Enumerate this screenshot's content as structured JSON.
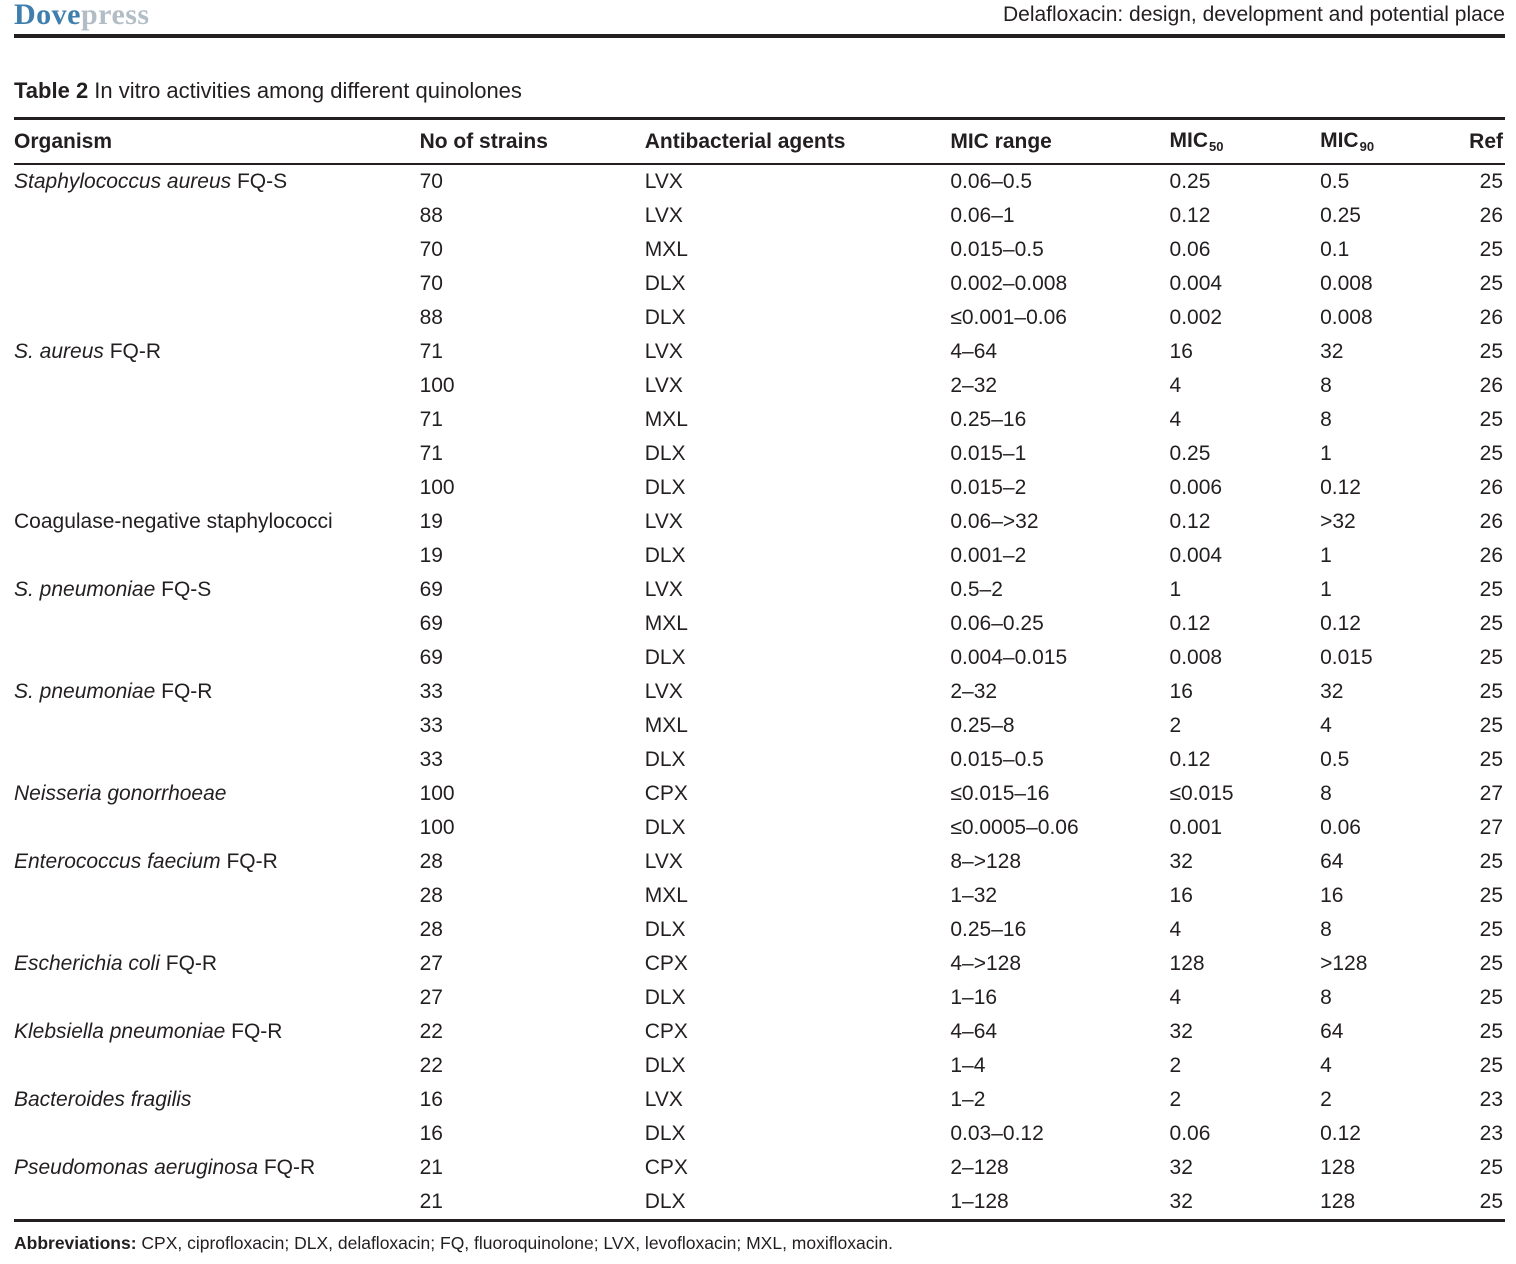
{
  "header": {
    "logo_bold": "Dove",
    "logo_light": "press",
    "running_title": "Delafloxacin: design, development and potential place"
  },
  "table": {
    "caption_label": "Table 2",
    "caption_text": "In vitro activities among different quinolones",
    "columns": [
      {
        "key": "organism",
        "label": "Organism"
      },
      {
        "key": "strains",
        "label": "No of strains"
      },
      {
        "key": "agents",
        "label": "Antibacterial agents"
      },
      {
        "key": "mic-range",
        "label": "MIC range"
      },
      {
        "key": "mic50",
        "label": "MIC",
        "sub": "50"
      },
      {
        "key": "mic90",
        "label": "MIC",
        "sub": "90"
      },
      {
        "key": "ref",
        "label": "Ref"
      }
    ],
    "rows": [
      {
        "organism": "Staphylococcus aureus",
        "suffix": "FQ-S",
        "italic": true,
        "strains": "70",
        "agent": "LVX",
        "mic_range": "0.06–0.5",
        "mic50": "0.25",
        "mic90": "0.5",
        "ref": "25"
      },
      {
        "organism": "",
        "suffix": "",
        "italic": false,
        "strains": "88",
        "agent": "LVX",
        "mic_range": "0.06–1",
        "mic50": "0.12",
        "mic90": "0.25",
        "ref": "26"
      },
      {
        "organism": "",
        "suffix": "",
        "italic": false,
        "strains": "70",
        "agent": "MXL",
        "mic_range": "0.015–0.5",
        "mic50": "0.06",
        "mic90": "0.1",
        "ref": "25"
      },
      {
        "organism": "",
        "suffix": "",
        "italic": false,
        "strains": "70",
        "agent": "DLX",
        "mic_range": "0.002–0.008",
        "mic50": "0.004",
        "mic90": "0.008",
        "ref": "25"
      },
      {
        "organism": "",
        "suffix": "",
        "italic": false,
        "strains": "88",
        "agent": "DLX",
        "mic_range": "≤0.001–0.06",
        "mic50": "0.002",
        "mic90": "0.008",
        "ref": "26"
      },
      {
        "organism": "S. aureus",
        "suffix": "FQ-R",
        "italic": true,
        "strains": "71",
        "agent": "LVX",
        "mic_range": "4–64",
        "mic50": "16",
        "mic90": "32",
        "ref": "25"
      },
      {
        "organism": "",
        "suffix": "",
        "italic": false,
        "strains": "100",
        "agent": "LVX",
        "mic_range": "2–32",
        "mic50": "4",
        "mic90": "8",
        "ref": "26"
      },
      {
        "organism": "",
        "suffix": "",
        "italic": false,
        "strains": "71",
        "agent": "MXL",
        "mic_range": "0.25–16",
        "mic50": "4",
        "mic90": "8",
        "ref": "25"
      },
      {
        "organism": "",
        "suffix": "",
        "italic": false,
        "strains": "71",
        "agent": "DLX",
        "mic_range": "0.015–1",
        "mic50": "0.25",
        "mic90": "1",
        "ref": "25"
      },
      {
        "organism": "",
        "suffix": "",
        "italic": false,
        "strains": "100",
        "agent": "DLX",
        "mic_range": "0.015–2",
        "mic50": "0.006",
        "mic90": "0.12",
        "ref": "26"
      },
      {
        "organism": "Coagulase-negative staphylococci",
        "suffix": "",
        "italic": false,
        "strains": "19",
        "agent": "LVX",
        "mic_range": "0.06–>32",
        "mic50": "0.12",
        "mic90": ">32",
        "ref": "26"
      },
      {
        "organism": "",
        "suffix": "",
        "italic": false,
        "strains": "19",
        "agent": "DLX",
        "mic_range": "0.001–2",
        "mic50": "0.004",
        "mic90": "1",
        "ref": "26"
      },
      {
        "organism": "S. pneumoniae",
        "suffix": "FQ-S",
        "italic": true,
        "strains": "69",
        "agent": "LVX",
        "mic_range": "0.5–2",
        "mic50": "1",
        "mic90": "1",
        "ref": "25"
      },
      {
        "organism": "",
        "suffix": "",
        "italic": false,
        "strains": "69",
        "agent": "MXL",
        "mic_range": "0.06–0.25",
        "mic50": "0.12",
        "mic90": "0.12",
        "ref": "25"
      },
      {
        "organism": "",
        "suffix": "",
        "italic": false,
        "strains": "69",
        "agent": "DLX",
        "mic_range": "0.004–0.015",
        "mic50": "0.008",
        "mic90": "0.015",
        "ref": "25"
      },
      {
        "organism": "S. pneumoniae",
        "suffix": "FQ-R",
        "italic": true,
        "strains": "33",
        "agent": "LVX",
        "mic_range": "2–32",
        "mic50": "16",
        "mic90": "32",
        "ref": "25"
      },
      {
        "organism": "",
        "suffix": "",
        "italic": false,
        "strains": "33",
        "agent": "MXL",
        "mic_range": "0.25–8",
        "mic50": "2",
        "mic90": "4",
        "ref": "25"
      },
      {
        "organism": "",
        "suffix": "",
        "italic": false,
        "strains": "33",
        "agent": "DLX",
        "mic_range": "0.015–0.5",
        "mic50": "0.12",
        "mic90": "0.5",
        "ref": "25"
      },
      {
        "organism": "Neisseria gonorrhoeae",
        "suffix": "",
        "italic": true,
        "strains": "100",
        "agent": "CPX",
        "mic_range": "≤0.015–16",
        "mic50": "≤0.015",
        "mic90": "8",
        "ref": "27"
      },
      {
        "organism": "",
        "suffix": "",
        "italic": false,
        "strains": "100",
        "agent": "DLX",
        "mic_range": "≤0.0005–0.06",
        "mic50": "0.001",
        "mic90": "0.06",
        "ref": "27"
      },
      {
        "organism": "Enterococcus faecium",
        "suffix": "FQ-R",
        "italic": true,
        "strains": "28",
        "agent": "LVX",
        "mic_range": "8–>128",
        "mic50": "32",
        "mic90": "64",
        "ref": "25"
      },
      {
        "organism": "",
        "suffix": "",
        "italic": false,
        "strains": "28",
        "agent": "MXL",
        "mic_range": "1–32",
        "mic50": "16",
        "mic90": "16",
        "ref": "25"
      },
      {
        "organism": "",
        "suffix": "",
        "italic": false,
        "strains": "28",
        "agent": "DLX",
        "mic_range": "0.25–16",
        "mic50": "4",
        "mic90": "8",
        "ref": "25"
      },
      {
        "organism": "Escherichia coli",
        "suffix": "FQ-R",
        "italic": true,
        "strains": "27",
        "agent": "CPX",
        "mic_range": "4–>128",
        "mic50": "128",
        "mic90": ">128",
        "ref": "25"
      },
      {
        "organism": "",
        "suffix": "",
        "italic": false,
        "strains": "27",
        "agent": "DLX",
        "mic_range": "1–16",
        "mic50": "4",
        "mic90": "8",
        "ref": "25"
      },
      {
        "organism": "Klebsiella pneumoniae",
        "suffix": "FQ-R",
        "italic": true,
        "strains": "22",
        "agent": "CPX",
        "mic_range": "4–64",
        "mic50": "32",
        "mic90": "64",
        "ref": "25"
      },
      {
        "organism": "",
        "suffix": "",
        "italic": false,
        "strains": "22",
        "agent": "DLX",
        "mic_range": "1–4",
        "mic50": "2",
        "mic90": "4",
        "ref": "25"
      },
      {
        "organism": "Bacteroides fragilis",
        "suffix": "",
        "italic": true,
        "strains": "16",
        "agent": "LVX",
        "mic_range": "1–2",
        "mic50": "2",
        "mic90": "2",
        "ref": "23"
      },
      {
        "organism": "",
        "suffix": "",
        "italic": false,
        "strains": "16",
        "agent": "DLX",
        "mic_range": "0.03–0.12",
        "mic50": "0.06",
        "mic90": "0.12",
        "ref": "23"
      },
      {
        "organism": "Pseudomonas aeruginosa",
        "suffix": "FQ-R",
        "italic": true,
        "strains": "21",
        "agent": "CPX",
        "mic_range": "2–128",
        "mic50": "32",
        "mic90": "128",
        "ref": "25"
      },
      {
        "organism": "",
        "suffix": "",
        "italic": false,
        "strains": "21",
        "agent": "DLX",
        "mic_range": "1–128",
        "mic50": "32",
        "mic90": "128",
        "ref": "25"
      }
    ]
  },
  "footnote": {
    "label": "Abbreviations:",
    "text": " CPX, ciprofloxacin; DLX, delafloxacin; FQ, fluoroquinolone; LVX, levofloxacin; MXL, moxifloxacin."
  },
  "colors": {
    "logo_blue": "#3e7fae",
    "logo_gray": "#b3bdc6",
    "text": "#231f20",
    "rule": "#231f20"
  }
}
